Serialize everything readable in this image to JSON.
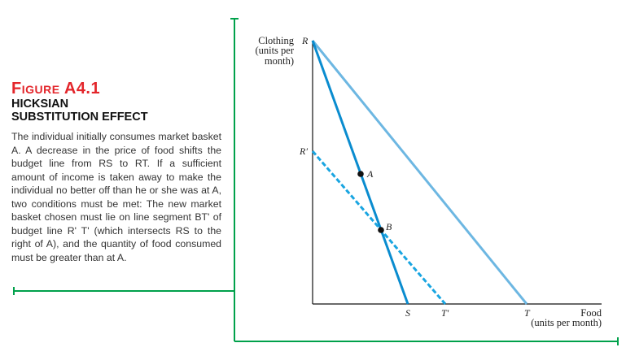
{
  "figure": {
    "number": "Figure A4.1",
    "title_line1": "HICKSIAN",
    "title_line2": "SUBSTITUTION EFFECT",
    "body": "The individual initially consumes market basket A. A decrease in the price of food shifts the budget line from RS to RT. If a sufficient amount of income is taken away to make the individual no better off than he or she was at A, two conditions must be met: The new market basket chosen must lie on line segment BT' of budget line R' T' (which intersects RS to the right of A), and the quantity of food consumed must be greater than at A."
  },
  "diagram": {
    "y_axis_label": [
      "Clothing",
      "(units per",
      "month)"
    ],
    "x_axis_label": [
      "Food",
      "(units per month)"
    ],
    "points": {
      "R": "R",
      "R_prime": "R′",
      "S": "S",
      "T_prime": "T′",
      "T": "T",
      "A": "A",
      "B": "B"
    },
    "colors": {
      "RS": "#0a8ccf",
      "RT": "#6db7e2",
      "R_prime_T_prime": "#19a5e1",
      "frame": "#00a14b"
    }
  }
}
